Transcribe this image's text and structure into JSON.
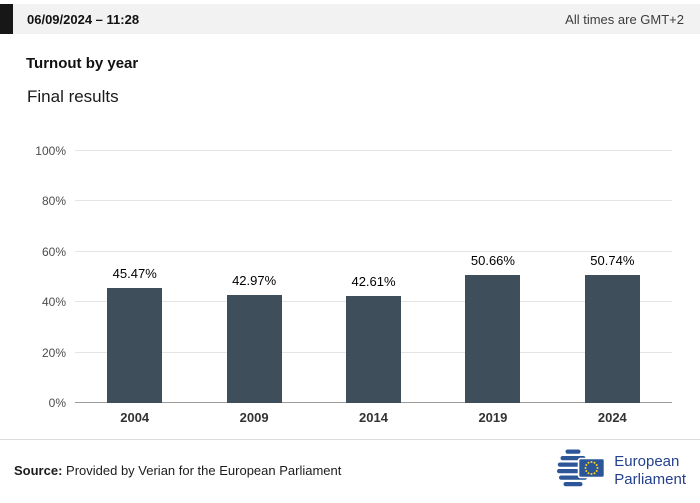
{
  "header": {
    "datetime": "06/09/2024 – 11:28",
    "timezone_note": "All times are GMT+2"
  },
  "chart_data": {
    "type": "bar",
    "title": "Turnout by year",
    "subtitle": "Final results",
    "categories": [
      "2004",
      "2009",
      "2014",
      "2019",
      "2024"
    ],
    "values": [
      45.47,
      42.97,
      42.61,
      50.66,
      50.74
    ],
    "data_labels": [
      "45.47%",
      "42.97%",
      "42.61%",
      "50.66%",
      "50.74%"
    ],
    "ylim": [
      0,
      100
    ],
    "yticks": [
      {
        "value": 0,
        "label": "0%"
      },
      {
        "value": 20,
        "label": "20%"
      },
      {
        "value": 40,
        "label": "40%"
      },
      {
        "value": 60,
        "label": "60%"
      },
      {
        "value": 80,
        "label": "80%"
      },
      {
        "value": 100,
        "label": "100%"
      }
    ],
    "bar_color": "#3f4e5b",
    "grid": true,
    "legend": false
  },
  "footer": {
    "source_label": "Source:",
    "source_text": "Provided by Verian for the European Parliament",
    "logo": {
      "icon": "european-parliament-logo",
      "text_line1": "European",
      "text_line2": "Parliament",
      "brand_blue": "#2c5697",
      "star_yellow": "#ffd617"
    }
  }
}
